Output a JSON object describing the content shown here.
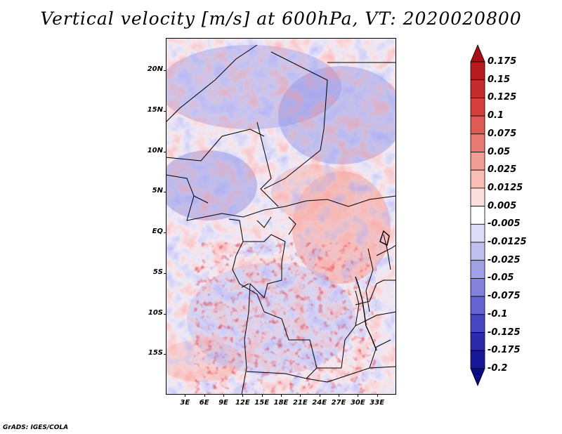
{
  "title": "Vertical velocity [m/s] at 600hPa, VT: 2020020800",
  "credit": "GrADS: IGES/COLA",
  "map": {
    "lon_range": [
      0,
      36
    ],
    "lat_range": [
      -20,
      24
    ],
    "lat_labels": [
      "20N",
      "15N",
      "10N",
      "5N",
      "EQ",
      "5S",
      "10S",
      "15S"
    ],
    "lat_values": [
      20,
      15,
      10,
      5,
      0,
      -5,
      -10,
      -15
    ],
    "lon_labels": [
      "3E",
      "6E",
      "9E",
      "12E",
      "15E",
      "18E",
      "21E",
      "24E",
      "27E",
      "30E",
      "33E"
    ],
    "lon_values": [
      3,
      6,
      9,
      12,
      15,
      18,
      21,
      24,
      27,
      30,
      33
    ],
    "border_color": "#000000"
  },
  "colorbar": {
    "labels": [
      "0.175",
      "0.15",
      "0.125",
      "0.1",
      "0.075",
      "0.05",
      "0.025",
      "0.0125",
      "0.005",
      "-0.005",
      "-0.0125",
      "-0.025",
      "-0.05",
      "-0.075",
      "-0.1",
      "-0.125",
      "-0.175",
      "-0.2"
    ],
    "colors": [
      "#a50f15",
      "#b7191d",
      "#c62a2a",
      "#d53e3b",
      "#e05a55",
      "#e97a72",
      "#f19c94",
      "#f8bdb5",
      "#fce0db",
      "#ffffff",
      "#dcdcf8",
      "#c0c0f0",
      "#a1a1e8",
      "#8383de",
      "#6464d2",
      "#4646c2",
      "#2a2aaa",
      "#17179a",
      "#0a0a85"
    ]
  }
}
